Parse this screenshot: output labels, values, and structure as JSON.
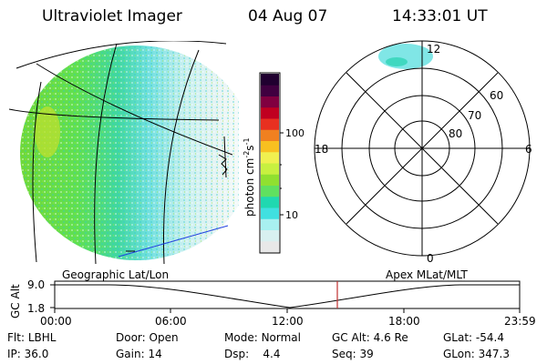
{
  "header": {
    "title": "Ultraviolet Imager",
    "date": "04 Aug 07",
    "time": "14:33:01 UT"
  },
  "colorbar": {
    "label": "photon cm",
    "label_sup1": "-2",
    "label_mid": "s",
    "label_sup2": "-1",
    "tick_high": "100",
    "tick_low": "10",
    "colors": [
      "#e8e8e8",
      "#d8f0f0",
      "#a8f0f0",
      "#40e0e0",
      "#20d8b0",
      "#60e060",
      "#90e030",
      "#c8f040",
      "#f0f050",
      "#f8c020",
      "#f08020",
      "#e83020",
      "#c00020",
      "#800040",
      "#400040",
      "#200030"
    ]
  },
  "polar": {
    "lat_labels": [
      "60",
      "70",
      "80"
    ],
    "mlt_labels": {
      "top": "12",
      "left": "18",
      "right": "6",
      "bottom": "0"
    }
  },
  "projection": {
    "left": "Geographic Lat/Lon",
    "right": "Apex MLat/MLT"
  },
  "orbit": {
    "ylabel": "GC Alt",
    "y_top": "9.0",
    "y_bottom": "1.8",
    "x_ticks": [
      "00:00",
      "06:00",
      "12:00",
      "18:00",
      "23:59"
    ],
    "marker_color": "#c03030"
  },
  "status": {
    "flt_label": "Flt:",
    "flt_value": "LBHL",
    "ip_label": "IP:",
    "ip_value": "36.0",
    "door_label": "Door:",
    "door_value": "Open",
    "gain_label": "Gain:",
    "gain_value": "14",
    "mode_label": "Mode:",
    "mode_value": "Normal",
    "dsp_label": "Dsp:",
    "dsp_value": "4.4",
    "gcalt_label": "GC Alt:",
    "gcalt_value": "4.6 Re",
    "seq_label": "Seq:",
    "seq_value": "39",
    "glat_label": "GLat:",
    "glat_value": "-54.4",
    "glon_label": "GLon:",
    "glon_value": "347.3"
  }
}
